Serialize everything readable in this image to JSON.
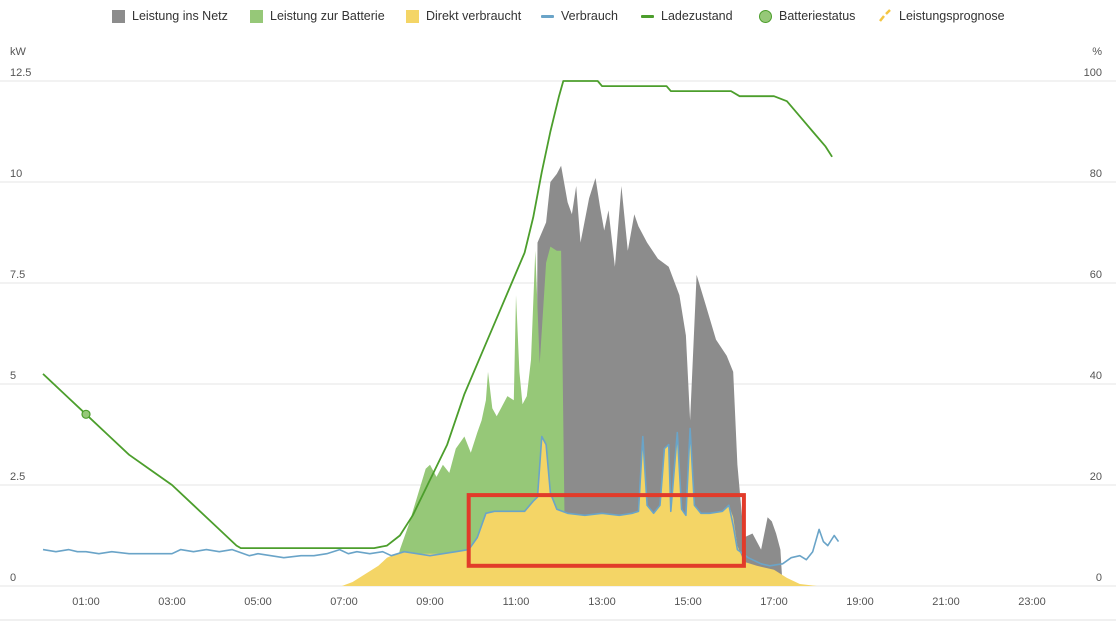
{
  "legend": [
    {
      "key": "grid",
      "label": "Leistung ins Netz",
      "color": "#8c8c8c",
      "shape": "square"
    },
    {
      "key": "battery",
      "label": "Leistung zur Batterie",
      "color": "#96c878",
      "shape": "square"
    },
    {
      "key": "direct",
      "label": "Direkt verbraucht",
      "color": "#f4d566",
      "shape": "square"
    },
    {
      "key": "consumption",
      "label": "Verbrauch",
      "color": "#6aa4c8",
      "shape": "line"
    },
    {
      "key": "soc",
      "label": "Ladezustand",
      "color": "#4c9e2c",
      "shape": "line"
    },
    {
      "key": "battery_status",
      "label": "Batteriestatus",
      "color": "#96c878",
      "shape": "circle"
    },
    {
      "key": "forecast",
      "label": "Leistungsprognose",
      "color": "#f4c542",
      "shape": "dash"
    }
  ],
  "chart_data": {
    "type": "area",
    "y_left": {
      "unit": "kW",
      "range": [
        0,
        12.5
      ],
      "ticks": [
        "0",
        "2.5",
        "5",
        "7.5",
        "10",
        "12.5"
      ]
    },
    "y_right": {
      "unit": "%",
      "range": [
        0,
        100
      ],
      "ticks": [
        "0",
        "20",
        "40",
        "60",
        "80",
        "100"
      ]
    },
    "x_ticks": [
      "01:00",
      "03:00",
      "05:00",
      "07:00",
      "09:00",
      "11:00",
      "13:00",
      "15:00",
      "17:00",
      "19:00",
      "21:00",
      "23:00"
    ],
    "x_range_hours": [
      0,
      24
    ],
    "grid": true,
    "series": [
      {
        "name": "Leistung ins Netz",
        "kind": "area",
        "color": "#8c8c8c",
        "points": [
          [
            11.45,
            0
          ],
          [
            11.5,
            8.5
          ],
          [
            11.7,
            9
          ],
          [
            11.8,
            10
          ],
          [
            11.95,
            10.2
          ],
          [
            12.05,
            10.4
          ],
          [
            12.2,
            9.5
          ],
          [
            12.3,
            9.2
          ],
          [
            12.4,
            9.9
          ],
          [
            12.5,
            8.5
          ],
          [
            12.7,
            9.6
          ],
          [
            12.85,
            10.1
          ],
          [
            12.95,
            9.4
          ],
          [
            13.05,
            8.8
          ],
          [
            13.15,
            9.3
          ],
          [
            13.3,
            7.9
          ],
          [
            13.45,
            9.9
          ],
          [
            13.6,
            8.3
          ],
          [
            13.75,
            9.2
          ],
          [
            13.85,
            8.9
          ],
          [
            14.05,
            8.5
          ],
          [
            14.3,
            8.1
          ],
          [
            14.55,
            7.9
          ],
          [
            14.8,
            7.2
          ],
          [
            14.95,
            6.2
          ],
          [
            15.05,
            4.1
          ],
          [
            15.2,
            7.7
          ],
          [
            15.4,
            7.0
          ],
          [
            15.65,
            6.1
          ],
          [
            15.9,
            5.7
          ],
          [
            16.05,
            5.3
          ],
          [
            16.15,
            3.0
          ],
          [
            16.3,
            1.2
          ],
          [
            16.5,
            1.3
          ],
          [
            16.7,
            0.9
          ],
          [
            16.85,
            1.7
          ],
          [
            16.95,
            1.6
          ],
          [
            17.05,
            1.3
          ],
          [
            17.15,
            0.9
          ],
          [
            17.2,
            0
          ]
        ]
      },
      {
        "name": "Leistung zur Batterie",
        "kind": "area",
        "color": "#96c878",
        "points": [
          [
            8.1,
            0
          ],
          [
            8.3,
            0.9
          ],
          [
            8.5,
            1.5
          ],
          [
            8.7,
            2.2
          ],
          [
            8.9,
            2.9
          ],
          [
            9.0,
            3.0
          ],
          [
            9.15,
            2.7
          ],
          [
            9.3,
            3.0
          ],
          [
            9.45,
            2.8
          ],
          [
            9.6,
            3.4
          ],
          [
            9.8,
            3.7
          ],
          [
            9.95,
            3.3
          ],
          [
            10.1,
            3.8
          ],
          [
            10.2,
            4.1
          ],
          [
            10.3,
            4.6
          ],
          [
            10.35,
            5.3
          ],
          [
            10.45,
            4.4
          ],
          [
            10.55,
            4.2
          ],
          [
            10.65,
            4.4
          ],
          [
            10.8,
            4.7
          ],
          [
            10.95,
            4.6
          ],
          [
            11.0,
            7.2
          ],
          [
            11.08,
            5.3
          ],
          [
            11.15,
            4.5
          ],
          [
            11.25,
            4.7
          ],
          [
            11.35,
            5.6
          ],
          [
            11.45,
            8.3
          ],
          [
            11.55,
            5.5
          ],
          [
            11.7,
            8.0
          ],
          [
            11.8,
            8.4
          ],
          [
            11.95,
            8.3
          ],
          [
            12.05,
            8.3
          ],
          [
            12.15,
            0
          ]
        ]
      },
      {
        "name": "Direkt verbraucht",
        "kind": "area",
        "color": "#f4d566",
        "points": [
          [
            6.95,
            0
          ],
          [
            7.2,
            0.1
          ],
          [
            7.5,
            0.3
          ],
          [
            7.8,
            0.5
          ],
          [
            8.0,
            0.7
          ],
          [
            8.2,
            0.8
          ],
          [
            8.5,
            0.85
          ],
          [
            8.8,
            0.8
          ],
          [
            9.2,
            0.8
          ],
          [
            9.6,
            0.85
          ],
          [
            9.9,
            0.9
          ],
          [
            10.1,
            1.2
          ],
          [
            10.3,
            1.8
          ],
          [
            10.5,
            1.85
          ],
          [
            10.9,
            1.85
          ],
          [
            11.2,
            1.85
          ],
          [
            11.4,
            2.1
          ],
          [
            11.5,
            2.2
          ],
          [
            11.6,
            3.7
          ],
          [
            11.7,
            3.5
          ],
          [
            11.8,
            2.3
          ],
          [
            11.95,
            1.9
          ],
          [
            12.2,
            1.8
          ],
          [
            12.6,
            1.75
          ],
          [
            13.0,
            1.8
          ],
          [
            13.4,
            1.75
          ],
          [
            13.7,
            1.8
          ],
          [
            13.85,
            1.85
          ],
          [
            13.95,
            3.7
          ],
          [
            14.05,
            2.0
          ],
          [
            14.2,
            1.8
          ],
          [
            14.35,
            2.0
          ],
          [
            14.45,
            3.4
          ],
          [
            14.55,
            3.5
          ],
          [
            14.6,
            1.85
          ],
          [
            14.75,
            3.8
          ],
          [
            14.85,
            1.9
          ],
          [
            14.95,
            1.75
          ],
          [
            15.05,
            3.9
          ],
          [
            15.15,
            2.0
          ],
          [
            15.3,
            1.8
          ],
          [
            15.5,
            1.8
          ],
          [
            15.8,
            1.85
          ],
          [
            15.95,
            2.0
          ],
          [
            16.05,
            1.7
          ],
          [
            16.15,
            1.0
          ],
          [
            16.3,
            0.6
          ],
          [
            16.6,
            0.5
          ],
          [
            17.0,
            0.4
          ],
          [
            17.3,
            0.2
          ],
          [
            17.6,
            0.05
          ],
          [
            18.0,
            0
          ]
        ]
      },
      {
        "name": "Verbrauch",
        "kind": "line",
        "color": "#6aa4c8",
        "points": [
          [
            0,
            0.9
          ],
          [
            0.3,
            0.85
          ],
          [
            0.6,
            0.9
          ],
          [
            0.8,
            0.85
          ],
          [
            1.0,
            0.85
          ],
          [
            1.3,
            0.8
          ],
          [
            1.6,
            0.85
          ],
          [
            2.0,
            0.8
          ],
          [
            2.5,
            0.8
          ],
          [
            3.0,
            0.8
          ],
          [
            3.2,
            0.9
          ],
          [
            3.5,
            0.85
          ],
          [
            3.8,
            0.9
          ],
          [
            4.1,
            0.85
          ],
          [
            4.4,
            0.9
          ],
          [
            4.8,
            0.75
          ],
          [
            5.0,
            0.8
          ],
          [
            5.3,
            0.75
          ],
          [
            5.6,
            0.7
          ],
          [
            6.0,
            0.75
          ],
          [
            6.3,
            0.75
          ],
          [
            6.6,
            0.8
          ],
          [
            6.9,
            0.9
          ],
          [
            7.1,
            0.8
          ],
          [
            7.3,
            0.85
          ],
          [
            7.6,
            0.8
          ],
          [
            7.9,
            0.85
          ],
          [
            8.1,
            0.75
          ],
          [
            8.4,
            0.85
          ],
          [
            8.7,
            0.8
          ],
          [
            9.0,
            0.75
          ],
          [
            9.3,
            0.8
          ],
          [
            9.6,
            0.85
          ],
          [
            9.9,
            0.9
          ],
          [
            10.1,
            1.2
          ],
          [
            10.3,
            1.8
          ],
          [
            10.5,
            1.85
          ],
          [
            10.9,
            1.85
          ],
          [
            11.2,
            1.85
          ],
          [
            11.4,
            2.1
          ],
          [
            11.5,
            2.2
          ],
          [
            11.6,
            3.7
          ],
          [
            11.7,
            3.5
          ],
          [
            11.8,
            2.3
          ],
          [
            11.95,
            1.9
          ],
          [
            12.2,
            1.8
          ],
          [
            12.6,
            1.75
          ],
          [
            13.0,
            1.8
          ],
          [
            13.4,
            1.75
          ],
          [
            13.7,
            1.8
          ],
          [
            13.85,
            1.85
          ],
          [
            13.95,
            3.7
          ],
          [
            14.05,
            2.0
          ],
          [
            14.2,
            1.8
          ],
          [
            14.35,
            2.0
          ],
          [
            14.45,
            3.4
          ],
          [
            14.55,
            3.5
          ],
          [
            14.6,
            1.85
          ],
          [
            14.75,
            3.8
          ],
          [
            14.85,
            1.9
          ],
          [
            14.95,
            1.75
          ],
          [
            15.05,
            3.9
          ],
          [
            15.15,
            2.0
          ],
          [
            15.3,
            1.8
          ],
          [
            15.5,
            1.8
          ],
          [
            15.8,
            1.85
          ],
          [
            15.95,
            2.0
          ],
          [
            16.05,
            1.5
          ],
          [
            16.15,
            0.9
          ],
          [
            16.4,
            0.7
          ],
          [
            16.7,
            0.55
          ],
          [
            16.9,
            0.5
          ],
          [
            17.2,
            0.55
          ],
          [
            17.4,
            0.7
          ],
          [
            17.6,
            0.75
          ],
          [
            17.75,
            0.65
          ],
          [
            17.9,
            0.85
          ],
          [
            18.05,
            1.4
          ],
          [
            18.15,
            1.1
          ],
          [
            18.25,
            1.0
          ],
          [
            18.4,
            1.25
          ],
          [
            18.5,
            1.1
          ]
        ]
      },
      {
        "name": "Ladezustand",
        "kind": "line",
        "axis": "right",
        "color": "#4c9e2c",
        "points": [
          [
            0,
            42
          ],
          [
            0.5,
            38
          ],
          [
            1.0,
            34
          ],
          [
            1.5,
            30
          ],
          [
            2.0,
            26
          ],
          [
            2.5,
            23
          ],
          [
            3.0,
            20
          ],
          [
            3.5,
            16
          ],
          [
            4.0,
            12
          ],
          [
            4.5,
            8
          ],
          [
            4.6,
            7.5
          ],
          [
            5.0,
            7.5
          ],
          [
            6.0,
            7.5
          ],
          [
            7.0,
            7.5
          ],
          [
            7.7,
            7.5
          ],
          [
            8.0,
            8
          ],
          [
            8.3,
            10
          ],
          [
            8.6,
            14
          ],
          [
            9.0,
            21
          ],
          [
            9.4,
            28
          ],
          [
            9.8,
            38
          ],
          [
            10.2,
            46
          ],
          [
            10.6,
            54
          ],
          [
            11.0,
            62
          ],
          [
            11.2,
            66
          ],
          [
            11.4,
            73
          ],
          [
            11.6,
            82
          ],
          [
            11.8,
            90
          ],
          [
            12.0,
            97
          ],
          [
            12.1,
            100
          ],
          [
            12.6,
            100
          ],
          [
            12.9,
            100
          ],
          [
            13.0,
            99
          ],
          [
            13.5,
            99
          ],
          [
            14.0,
            99
          ],
          [
            14.5,
            99
          ],
          [
            14.6,
            98
          ],
          [
            15.0,
            98
          ],
          [
            16.0,
            98
          ],
          [
            16.2,
            97
          ],
          [
            16.5,
            97
          ],
          [
            17.0,
            97
          ],
          [
            17.3,
            96
          ],
          [
            17.6,
            93
          ],
          [
            17.9,
            90
          ],
          [
            18.2,
            87
          ],
          [
            18.35,
            85
          ]
        ]
      }
    ],
    "markers": [
      {
        "series": "Batteriestatus",
        "x": 1.0,
        "y": 34,
        "axis": "right",
        "color": "#96c878"
      }
    ],
    "annotations": [
      {
        "type": "rect",
        "color": "#e23b2a",
        "x0": 9.9,
        "x1": 16.3,
        "y0": 0.5,
        "y1": 2.25
      }
    ]
  }
}
